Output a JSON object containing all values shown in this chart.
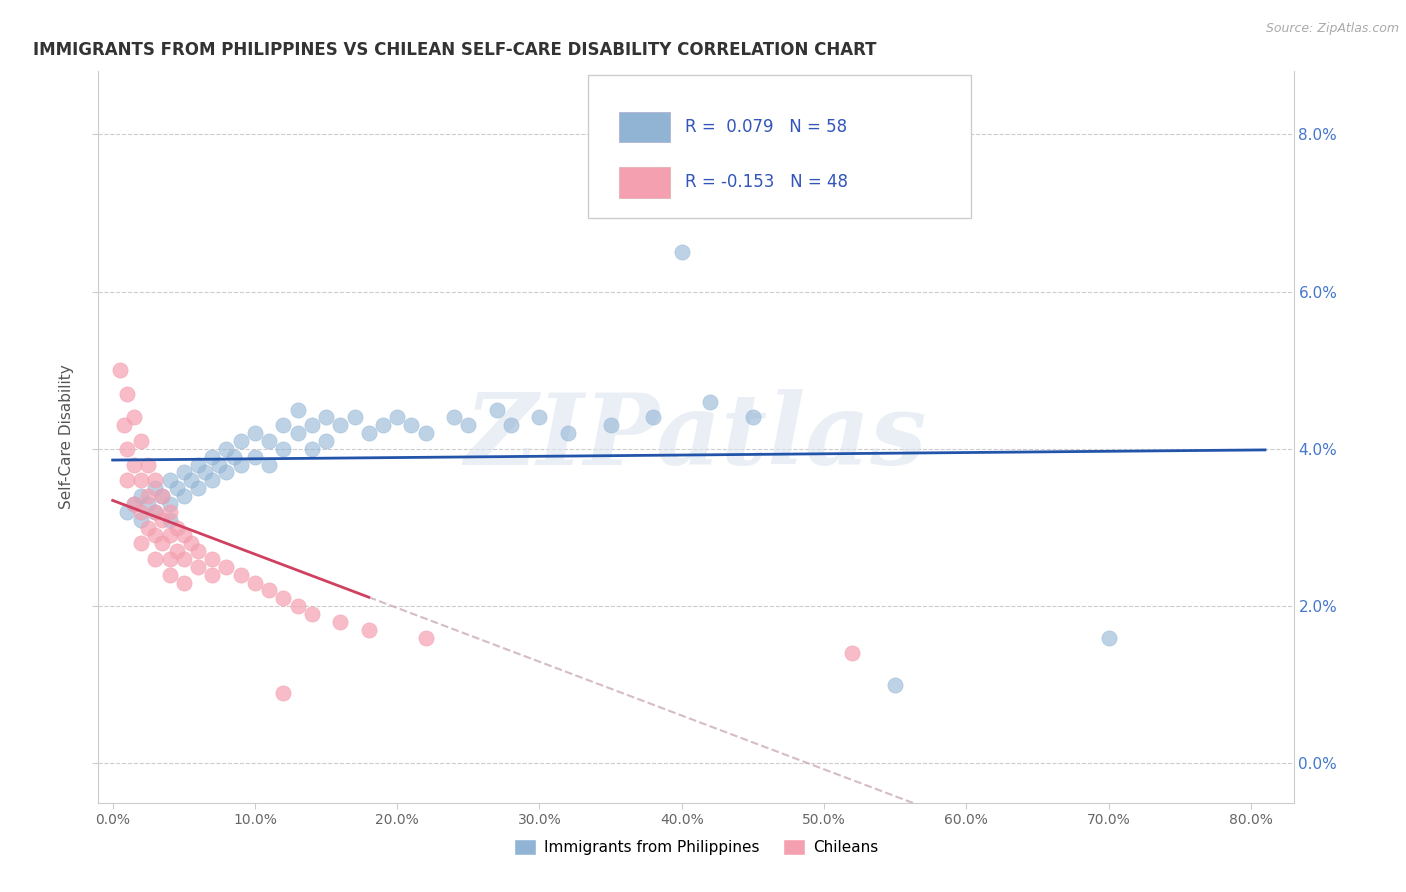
{
  "title": "IMMIGRANTS FROM PHILIPPINES VS CHILEAN SELF-CARE DISABILITY CORRELATION CHART",
  "source": "Source: ZipAtlas.com",
  "xlabel_label": "Immigrants from Philippines",
  "xlabel_label2": "Chileans",
  "ylabel": "Self-Care Disability",
  "x_ticks": [
    0.0,
    0.1,
    0.2,
    0.3,
    0.4,
    0.5,
    0.6,
    0.7,
    0.8
  ],
  "x_tick_labels": [
    "0.0%",
    "10.0%",
    "20.0%",
    "30.0%",
    "40.0%",
    "50.0%",
    "60.0%",
    "70.0%",
    "80.0%"
  ],
  "y_ticks": [
    0.0,
    0.02,
    0.04,
    0.06,
    0.08
  ],
  "y_tick_labels_right": [
    "0.0%",
    "2.0%",
    "4.0%",
    "6.0%",
    "8.0%"
  ],
  "xlim": [
    -0.01,
    0.83
  ],
  "ylim": [
    -0.005,
    0.088
  ],
  "philippines_color": "#92b4d4",
  "chilean_color": "#f4a0b0",
  "philippines_line_color": "#2255aa",
  "chilean_line_color": "#d04060",
  "chilean_dash_color": "#ccaabb",
  "philippines_R": 0.079,
  "philippines_N": 58,
  "chilean_R": -0.153,
  "chilean_N": 48,
  "watermark": "ZIPatlas",
  "philippines_scatter": [
    [
      0.01,
      0.032
    ],
    [
      0.015,
      0.033
    ],
    [
      0.02,
      0.031
    ],
    [
      0.02,
      0.034
    ],
    [
      0.025,
      0.033
    ],
    [
      0.03,
      0.035
    ],
    [
      0.03,
      0.032
    ],
    [
      0.035,
      0.034
    ],
    [
      0.04,
      0.036
    ],
    [
      0.04,
      0.033
    ],
    [
      0.04,
      0.031
    ],
    [
      0.045,
      0.035
    ],
    [
      0.05,
      0.037
    ],
    [
      0.05,
      0.034
    ],
    [
      0.055,
      0.036
    ],
    [
      0.06,
      0.038
    ],
    [
      0.06,
      0.035
    ],
    [
      0.065,
      0.037
    ],
    [
      0.07,
      0.039
    ],
    [
      0.07,
      0.036
    ],
    [
      0.075,
      0.038
    ],
    [
      0.08,
      0.04
    ],
    [
      0.08,
      0.037
    ],
    [
      0.085,
      0.039
    ],
    [
      0.09,
      0.041
    ],
    [
      0.09,
      0.038
    ],
    [
      0.1,
      0.042
    ],
    [
      0.1,
      0.039
    ],
    [
      0.11,
      0.041
    ],
    [
      0.11,
      0.038
    ],
    [
      0.12,
      0.043
    ],
    [
      0.12,
      0.04
    ],
    [
      0.13,
      0.045
    ],
    [
      0.13,
      0.042
    ],
    [
      0.14,
      0.043
    ],
    [
      0.14,
      0.04
    ],
    [
      0.15,
      0.044
    ],
    [
      0.15,
      0.041
    ],
    [
      0.16,
      0.043
    ],
    [
      0.17,
      0.044
    ],
    [
      0.18,
      0.042
    ],
    [
      0.19,
      0.043
    ],
    [
      0.2,
      0.044
    ],
    [
      0.21,
      0.043
    ],
    [
      0.22,
      0.042
    ],
    [
      0.24,
      0.044
    ],
    [
      0.25,
      0.043
    ],
    [
      0.27,
      0.045
    ],
    [
      0.28,
      0.043
    ],
    [
      0.3,
      0.044
    ],
    [
      0.32,
      0.042
    ],
    [
      0.35,
      0.043
    ],
    [
      0.38,
      0.044
    ],
    [
      0.4,
      0.065
    ],
    [
      0.42,
      0.046
    ],
    [
      0.45,
      0.044
    ],
    [
      0.55,
      0.01
    ],
    [
      0.7,
      0.016
    ]
  ],
  "chilean_scatter": [
    [
      0.005,
      0.05
    ],
    [
      0.008,
      0.043
    ],
    [
      0.01,
      0.047
    ],
    [
      0.01,
      0.04
    ],
    [
      0.01,
      0.036
    ],
    [
      0.015,
      0.044
    ],
    [
      0.015,
      0.038
    ],
    [
      0.015,
      0.033
    ],
    [
      0.02,
      0.041
    ],
    [
      0.02,
      0.036
    ],
    [
      0.02,
      0.032
    ],
    [
      0.02,
      0.028
    ],
    [
      0.025,
      0.038
    ],
    [
      0.025,
      0.034
    ],
    [
      0.025,
      0.03
    ],
    [
      0.03,
      0.036
    ],
    [
      0.03,
      0.032
    ],
    [
      0.03,
      0.029
    ],
    [
      0.03,
      0.026
    ],
    [
      0.035,
      0.034
    ],
    [
      0.035,
      0.031
    ],
    [
      0.035,
      0.028
    ],
    [
      0.04,
      0.032
    ],
    [
      0.04,
      0.029
    ],
    [
      0.04,
      0.026
    ],
    [
      0.04,
      0.024
    ],
    [
      0.045,
      0.03
    ],
    [
      0.045,
      0.027
    ],
    [
      0.05,
      0.029
    ],
    [
      0.05,
      0.026
    ],
    [
      0.05,
      0.023
    ],
    [
      0.055,
      0.028
    ],
    [
      0.06,
      0.027
    ],
    [
      0.06,
      0.025
    ],
    [
      0.07,
      0.026
    ],
    [
      0.07,
      0.024
    ],
    [
      0.08,
      0.025
    ],
    [
      0.09,
      0.024
    ],
    [
      0.1,
      0.023
    ],
    [
      0.11,
      0.022
    ],
    [
      0.12,
      0.021
    ],
    [
      0.13,
      0.02
    ],
    [
      0.14,
      0.019
    ],
    [
      0.16,
      0.018
    ],
    [
      0.18,
      0.017
    ],
    [
      0.22,
      0.016
    ],
    [
      0.12,
      0.009
    ],
    [
      0.52,
      0.014
    ]
  ]
}
